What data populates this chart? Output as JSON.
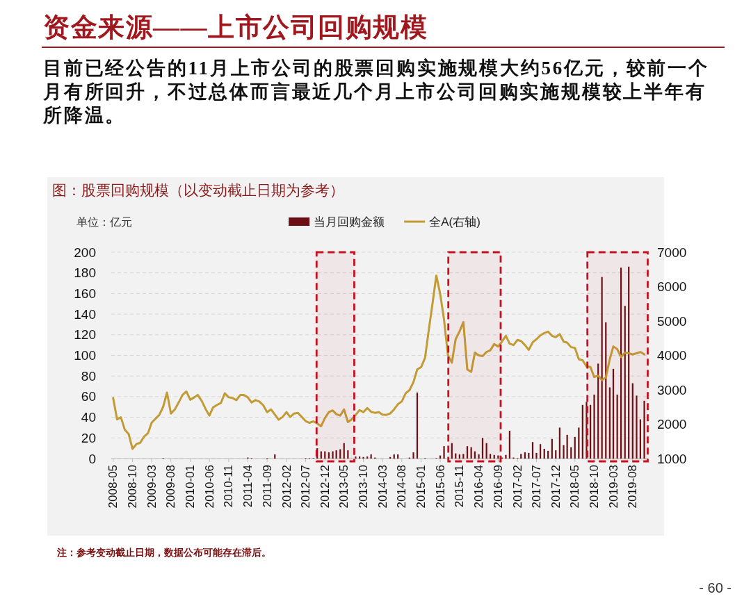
{
  "chart_data": {
    "type": "bar",
    "title": "资金来源——上市公司回购规模",
    "subtitle": "目前已经公告的11月上市公司的股票回购实施规模大约56亿元，较前一个月有所回升，不过总体而言最近几个月上市公司回购实施规模较上半年有所降温。",
    "ylabel": "单位：亿元",
    "annotations": [
      "图：股票回购规模（以变动截止日期为参考）",
      "注：参考变动截止日期，数据公布可能存在滞后。",
      "- 60 -"
    ],
    "x": [
      "2008-05",
      "2008-06",
      "2008-07",
      "2008-08",
      "2008-09",
      "2008-10",
      "2008-11",
      "2008-12",
      "2009-01",
      "2009-02",
      "2009-03",
      "2009-04",
      "2009-05",
      "2009-06",
      "2009-07",
      "2009-08",
      "2009-09",
      "2009-10",
      "2009-11",
      "2009-12",
      "2010-01",
      "2010-02",
      "2010-03",
      "2010-04",
      "2010-05",
      "2010-06",
      "2010-07",
      "2010-08",
      "2010-09",
      "2010-10",
      "2010-11",
      "2010-12",
      "2011-01",
      "2011-02",
      "2011-03",
      "2011-04",
      "2011-05",
      "2011-06",
      "2011-07",
      "2011-08",
      "2011-09",
      "2011-10",
      "2011-11",
      "2011-12",
      "2012-01",
      "2012-02",
      "2012-03",
      "2012-04",
      "2012-05",
      "2012-06",
      "2012-07",
      "2012-08",
      "2012-09",
      "2012-10",
      "2012-11",
      "2012-12",
      "2013-01",
      "2013-02",
      "2013-03",
      "2013-04",
      "2013-05",
      "2013-06",
      "2013-07",
      "2013-08",
      "2013-09",
      "2013-10",
      "2013-11",
      "2013-12",
      "2014-01",
      "2014-02",
      "2014-03",
      "2014-04",
      "2014-05",
      "2014-06",
      "2014-07",
      "2014-08",
      "2014-09",
      "2014-10",
      "2014-11",
      "2014-12",
      "2015-01",
      "2015-02",
      "2015-03",
      "2015-04",
      "2015-05",
      "2015-06",
      "2015-07",
      "2015-08",
      "2015-09",
      "2015-10",
      "2015-11",
      "2015-12",
      "2016-01",
      "2016-02",
      "2016-03",
      "2016-04",
      "2016-05",
      "2016-06",
      "2016-07",
      "2016-08",
      "2016-09",
      "2016-10",
      "2016-11",
      "2016-12",
      "2017-01",
      "2017-02",
      "2017-03",
      "2017-04",
      "2017-05",
      "2017-06",
      "2017-07",
      "2017-08",
      "2017-09",
      "2017-10",
      "2017-11",
      "2017-12",
      "2018-01",
      "2018-02",
      "2018-03",
      "2018-04",
      "2018-05",
      "2018-06",
      "2018-07",
      "2018-08",
      "2018-09",
      "2018-10",
      "2018-11",
      "2018-12",
      "2019-01",
      "2019-02",
      "2019-03",
      "2019-04",
      "2019-05",
      "2019-06",
      "2019-07",
      "2019-08",
      "2019-09",
      "2019-10",
      "2019-11"
    ],
    "xlim": [
      "2008-04-16",
      "2019-12-01"
    ],
    "xticks": [
      "2008-05",
      "2008-10",
      "2009-03",
      "2009-08",
      "2010-01",
      "2010-06",
      "2010-11",
      "2011-04",
      "2011-09",
      "2012-02",
      "2012-07",
      "2012-12",
      "2013-05",
      "2013-10",
      "2014-03",
      "2014-08",
      "2015-01",
      "2015-06",
      "2015-11",
      "2016-04",
      "2016-09",
      "2017-02",
      "2017-07",
      "2017-12",
      "2018-05",
      "2018-10",
      "2019-03",
      "2019-08"
    ],
    "ylim": [
      0,
      200
    ],
    "yticks": [
      0,
      20,
      40,
      60,
      80,
      100,
      120,
      140,
      160,
      180,
      200
    ],
    "y2lim": [
      1000,
      7000
    ],
    "y2ticks": [
      1000,
      2000,
      3000,
      4000,
      5000,
      6000,
      7000
    ],
    "grid": "y",
    "legend": "top",
    "series": [
      {
        "name": "当月回购金额",
        "color": "#6b0f14",
        "values": [
          0,
          0,
          0,
          0,
          0,
          0,
          0,
          0,
          0,
          0,
          0,
          0,
          0,
          0.5,
          0,
          0,
          0,
          0,
          0,
          0,
          0,
          0,
          0,
          0,
          0,
          0,
          0,
          0,
          0,
          0,
          0,
          0,
          0,
          0,
          0,
          1,
          0.5,
          0,
          0,
          0,
          0.5,
          0,
          4,
          0,
          0,
          0,
          0,
          0,
          0,
          0,
          0.5,
          0.5,
          0.5,
          10,
          7,
          7,
          6,
          7,
          8,
          9,
          15,
          8,
          null,
          2,
          2,
          1.5,
          2,
          4,
          1,
          0,
          0,
          0,
          1.5,
          4,
          4,
          0,
          0,
          1,
          6,
          64,
          0,
          0.5,
          0,
          0,
          0.5,
          3,
          12,
          null,
          15,
          5,
          4,
          4.5,
          12,
          11,
          7,
          4,
          20,
          15,
          4.5,
          3.5,
          3,
          1,
          3.5,
          27,
          1,
          0.5,
          4.5,
          6,
          5.5,
          16,
          5.5,
          14,
          9.5,
          7.5,
          19,
          8,
          30,
          13,
          23,
          11,
          21,
          30,
          52,
          55,
          52,
          62,
          92,
          176,
          132,
          69,
          87,
          62,
          185,
          148,
          186,
          73,
          61,
          38,
          56
        ]
      },
      {
        "name": "全A(右轴)",
        "type": "line",
        "axis": "y2",
        "color": "#c29b35",
        "values": [
          2760,
          2140,
          2200,
          1840,
          1710,
          1280,
          1420,
          1460,
          1640,
          1740,
          2040,
          2160,
          2270,
          2510,
          2920,
          2310,
          2430,
          2630,
          2850,
          2950,
          2710,
          2780,
          2850,
          2680,
          2450,
          2250,
          2490,
          2560,
          2620,
          2900,
          2780,
          2760,
          2700,
          2850,
          2850,
          2780,
          2630,
          2700,
          2660,
          2550,
          2350,
          2430,
          2280,
          2130,
          2210,
          2350,
          2210,
          2310,
          2330,
          2210,
          2090,
          2040,
          2080,
          2020,
          1940,
          2180,
          2350,
          2400,
          2290,
          2250,
          2430,
          2060,
          2140,
          2270,
          2410,
          2350,
          2470,
          2360,
          2330,
          2350,
          2280,
          2270,
          2310,
          2430,
          2580,
          2660,
          2900,
          2990,
          3220,
          3590,
          3660,
          3930,
          4700,
          5510,
          6320,
          5780,
          5040,
          4000,
          3790,
          4470,
          4700,
          4970,
          3590,
          3520,
          4080,
          4000,
          3980,
          4100,
          4150,
          4330,
          4260,
          4400,
          4570,
          4340,
          4300,
          4450,
          4420,
          4300,
          4160,
          4380,
          4470,
          4580,
          4650,
          4690,
          4570,
          4530,
          4620,
          4400,
          4370,
          4240,
          4220,
          3890,
          3860,
          3680,
          3660,
          3370,
          3410,
          3280,
          3360,
          3890,
          4260,
          4180,
          3950,
          4080,
          4060,
          4030,
          4060,
          4100,
          4030
        ]
      }
    ],
    "bands": [
      {
        "axis": "x",
        "from": "2012-09-26",
        "to": "2013-07-21",
        "color": "#c8101e"
      },
      {
        "axis": "x",
        "from": "2015-08-04",
        "to": "2016-09-21",
        "color": "#c8101e"
      },
      {
        "axis": "x",
        "from": "2018-08-08",
        "to": "2019-11-28",
        "color": "#c8101e"
      }
    ]
  }
}
